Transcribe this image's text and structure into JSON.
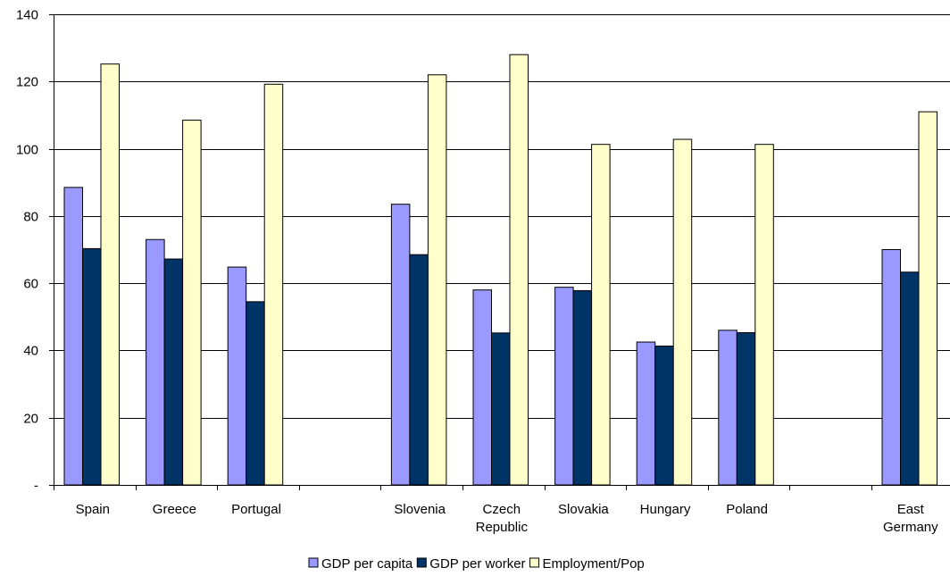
{
  "chart_data": {
    "type": "bar",
    "title": "",
    "xlabel": "",
    "ylabel": "",
    "ylim": [
      0,
      140
    ],
    "yticks": [
      0,
      20,
      40,
      60,
      80,
      100,
      120,
      140
    ],
    "ytick_labels": [
      "-",
      "20",
      "40",
      "60",
      "80",
      "100",
      "120",
      "140"
    ],
    "grid": true,
    "legend_position": "bottom",
    "categories": [
      [
        "Spain"
      ],
      [
        "Greece"
      ],
      [
        "Portugal"
      ],
      [],
      [
        "Slovenia"
      ],
      [
        "Czech",
        "Republic"
      ],
      [
        "Slovakia"
      ],
      [
        "Hungary"
      ],
      [
        "Poland"
      ],
      [],
      [
        "East",
        "Germany"
      ]
    ],
    "series": [
      {
        "name": "GDP per capita",
        "color": "#9999FF",
        "values": [
          88.5,
          73,
          64.8,
          null,
          83.5,
          58,
          58.8,
          42.5,
          46,
          null,
          70
        ]
      },
      {
        "name": "GDP per worker",
        "color": "#003366",
        "values": [
          70.3,
          67.2,
          54.5,
          null,
          68.5,
          45.2,
          57.8,
          41.3,
          45.3,
          null,
          63.3
        ]
      },
      {
        "name": "Employment/Pop",
        "color": "#FFFFCC",
        "values": [
          125.2,
          108.5,
          119.2,
          null,
          122,
          128,
          101.3,
          102.8,
          101.3,
          null,
          111
        ]
      }
    ]
  }
}
